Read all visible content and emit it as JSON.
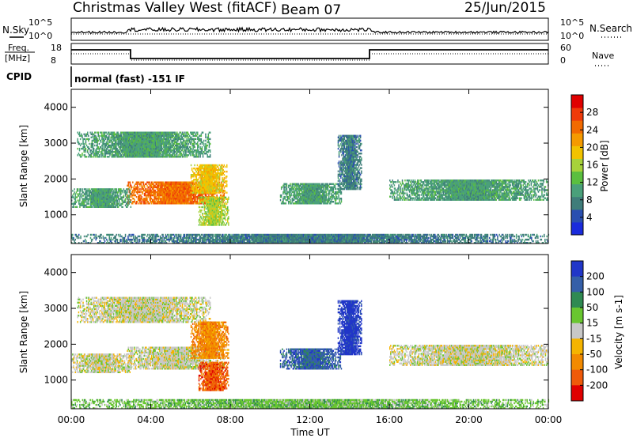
{
  "header": {
    "title": "Christmas Valley West (fitACF)",
    "beam": "Beam 07",
    "date": "25/Jun/2015"
  },
  "strip": {
    "nsky_label": "N.Sky",
    "nsearch_label": "N.Search",
    "nsky_ticks": [
      "10^5",
      "10^0"
    ],
    "nsearch_ticks": [
      "10^5",
      "10^0"
    ],
    "freq_label_1": "Freq.",
    "freq_label_2": "[MHz]",
    "freq_ticks": [
      "18",
      "8"
    ],
    "nave_label": "Nave",
    "nave_ticks": [
      "60",
      "0"
    ],
    "cpid_label": "CPID",
    "cpid_text": "normal (fast) -151 IF"
  },
  "chart_data": [
    {
      "type": "heatmap",
      "panel": "power",
      "ylabel": "Slant Range [km]",
      "xlabel": "Time UT",
      "yticks": [
        "1000",
        "2000",
        "3000",
        "4000"
      ],
      "xticks": [
        "00:00",
        "04:00",
        "08:00",
        "12:00",
        "16:00",
        "20:00",
        "00:00"
      ],
      "ylim": [
        200,
        4500
      ],
      "xlim": [
        0,
        24
      ],
      "colorbar": {
        "label": "Power [dB]",
        "ticks": [
          "4",
          "8",
          "12",
          "16",
          "20",
          "24",
          "28"
        ],
        "range": [
          0,
          32
        ],
        "colors": [
          "#1a2bdc",
          "#2a4fb0",
          "#3f7d7a",
          "#4aa07a",
          "#5bbf3f",
          "#a7d23a",
          "#f2c300",
          "#f59a00",
          "#f26a00",
          "#ef3a0a",
          "#e00000"
        ]
      },
      "regions": [
        {
          "t": [
            0.3,
            7.0
          ],
          "r": [
            2600,
            3300
          ],
          "power": 10
        },
        {
          "t": [
            2.8,
            7.7
          ],
          "r": [
            1300,
            1900
          ],
          "power": 26
        },
        {
          "t": [
            6.0,
            7.8
          ],
          "r": [
            1600,
            2400
          ],
          "power": 18
        },
        {
          "t": [
            6.4,
            7.9
          ],
          "r": [
            700,
            1500
          ],
          "power": 16
        },
        {
          "t": [
            0.0,
            3.0
          ],
          "r": [
            1200,
            1700
          ],
          "power": 8
        },
        {
          "t": [
            10.5,
            13.6
          ],
          "r": [
            1300,
            1850
          ],
          "power": 10
        },
        {
          "t": [
            13.4,
            14.6
          ],
          "r": [
            1700,
            3200
          ],
          "power": 6
        },
        {
          "t": [
            16.0,
            24.0
          ],
          "r": [
            1400,
            1950
          ],
          "power": 8
        },
        {
          "t": [
            0.0,
            24.0
          ],
          "r": [
            200,
            450
          ],
          "power": 6
        }
      ]
    },
    {
      "type": "heatmap",
      "panel": "velocity",
      "ylabel": "Slant Range [km]",
      "xlabel": "Time UT",
      "yticks": [
        "1000",
        "2000",
        "3000",
        "4000"
      ],
      "xticks": [
        "00:00",
        "04:00",
        "08:00",
        "12:00",
        "16:00",
        "20:00",
        "00:00"
      ],
      "ylim": [
        200,
        4500
      ],
      "xlim": [
        0,
        24
      ],
      "colorbar": {
        "label": "Velocity [m s-1]",
        "ticks": [
          "200",
          "100",
          "50",
          "15",
          "-15",
          "-50",
          "-100",
          "-200"
        ],
        "colors": [
          "#2136c8",
          "#355fa8",
          "#2f8a52",
          "#69c630",
          "#c8c8c8",
          "#f5b400",
          "#f28a00",
          "#ef5a0a",
          "#e00000"
        ]
      },
      "regions": [
        {
          "t": [
            0.3,
            7.0
          ],
          "r": [
            2600,
            3300
          ],
          "velocity": 0
        },
        {
          "t": [
            2.8,
            7.7
          ],
          "r": [
            1300,
            1900
          ],
          "velocity": 0
        },
        {
          "t": [
            6.0,
            7.9
          ],
          "r": [
            1600,
            2600
          ],
          "velocity": -60
        },
        {
          "t": [
            6.4,
            7.9
          ],
          "r": [
            700,
            1500
          ],
          "velocity": -180
        },
        {
          "t": [
            0.0,
            3.0
          ],
          "r": [
            1200,
            1700
          ],
          "velocity": 0
        },
        {
          "t": [
            10.5,
            13.6
          ],
          "r": [
            1300,
            1850
          ],
          "velocity": 150
        },
        {
          "t": [
            13.4,
            14.6
          ],
          "r": [
            1700,
            3200
          ],
          "velocity": 200
        },
        {
          "t": [
            16.0,
            24.0
          ],
          "r": [
            1400,
            1950
          ],
          "velocity": 0
        },
        {
          "t": [
            0.0,
            24.0
          ],
          "r": [
            200,
            450
          ],
          "velocity": 30
        }
      ]
    }
  ]
}
